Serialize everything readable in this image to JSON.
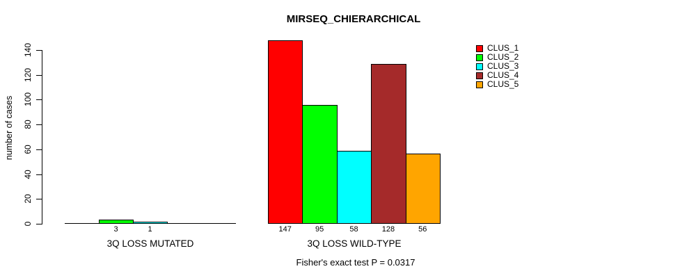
{
  "chart_data": {
    "type": "bar",
    "title": "MIRSEQ_CHIERARCHICAL",
    "ylabel": "number of cases",
    "xlabel": "",
    "ylim": [
      0,
      147
    ],
    "yticks": [
      0,
      20,
      40,
      60,
      80,
      100,
      120,
      140
    ],
    "grid": false,
    "legend": {
      "position": "right",
      "entries": [
        {
          "label": "CLUS_1",
          "color": "#FF0000"
        },
        {
          "label": "CLUS_2",
          "color": "#00FF00"
        },
        {
          "label": "CLUS_3",
          "color": "#00FFFF"
        },
        {
          "label": "CLUS_4",
          "color": "#A52A2A"
        },
        {
          "label": "CLUS_5",
          "color": "#FFA500"
        }
      ]
    },
    "series": [
      "CLUS_1",
      "CLUS_2",
      "CLUS_3",
      "CLUS_4",
      "CLUS_5"
    ],
    "groups": [
      {
        "label": "3Q LOSS MUTATED",
        "values": [
          0,
          3,
          1,
          0,
          0
        ],
        "bar_labels": [
          "",
          "3",
          "1",
          "",
          ""
        ]
      },
      {
        "label": "3Q LOSS WILD-TYPE",
        "values": [
          147,
          95,
          58,
          128,
          56
        ],
        "bar_labels": [
          "147",
          "95",
          "58",
          "128",
          "56"
        ]
      }
    ],
    "annotation": "Fisher's exact test P = 0.0317"
  }
}
